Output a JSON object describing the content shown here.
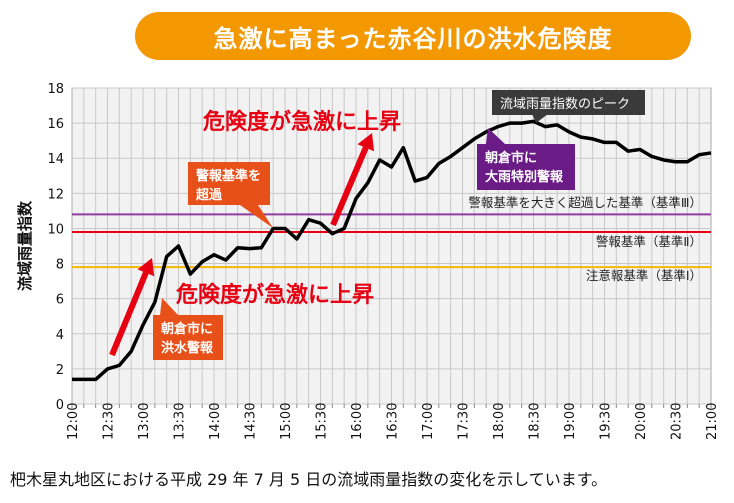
{
  "title": "急激に高まった赤谷川の洪水危険度",
  "caption": "杷木星丸地区における平成 29 年 7 月 5 日の流域雨量指数の変化を示しています。",
  "chart_data": {
    "type": "line",
    "ylabel": "流域雨量指数",
    "ylim": [
      0,
      18
    ],
    "yticks": [
      0,
      2,
      4,
      6,
      8,
      10,
      12,
      14,
      16,
      18
    ],
    "xticks": [
      "12:00",
      "12:30",
      "13:00",
      "13:30",
      "14:00",
      "14:30",
      "15:00",
      "15:30",
      "16:00",
      "16:30",
      "17:00",
      "17:30",
      "18:00",
      "18:30",
      "19:00",
      "19:30",
      "20:00",
      "20:30",
      "21:00"
    ],
    "x_start": "12:00",
    "x_end": "21:00",
    "x_interval_minutes": 10,
    "grid": true,
    "series": [
      {
        "color": "#000000",
        "values": [
          1.4,
          1.4,
          1.4,
          2.0,
          2.2,
          3.0,
          4.5,
          5.8,
          8.4,
          9.0,
          7.4,
          8.1,
          8.5,
          8.2,
          8.9,
          8.85,
          8.9,
          10.0,
          10.0,
          9.4,
          10.5,
          10.3,
          9.7,
          10.0,
          11.7,
          12.6,
          13.9,
          13.5,
          14.6,
          12.7,
          12.9,
          13.7,
          14.1,
          14.6,
          15.1,
          15.5,
          15.8,
          16.0,
          16.0,
          16.1,
          15.8,
          15.9,
          15.5,
          15.2,
          15.1,
          14.9,
          14.9,
          14.4,
          14.5,
          14.1,
          13.9,
          13.8,
          13.8,
          14.2,
          14.3
        ]
      }
    ],
    "thresholds": [
      {
        "label": "警報基準を大きく超過した基準（基準Ⅲ）",
        "value": 10.8,
        "color": "#8e3d9e"
      },
      {
        "label": "警報基準（基準Ⅱ）",
        "value": 9.8,
        "color": "#e60012"
      },
      {
        "label": "注意報基準（基準Ⅰ）",
        "value": 7.8,
        "color": "#f5b800"
      }
    ],
    "annotations": {
      "rise_upper": "危険度が急激に上昇",
      "rise_lower": "危険度が急激に上昇",
      "exceed": [
        "警報基準を",
        "超過"
      ],
      "flood_warning": [
        "朝倉市に",
        "洪水警報"
      ],
      "special_warning": [
        "朝倉市に",
        "大雨特別警報"
      ],
      "peak": "流域雨量指数のピーク"
    },
    "colors": {
      "accent": "#f39800",
      "box_orange": "#e8501a",
      "box_purple": "#6a1b86",
      "box_dark": "#3a3a3a",
      "arrow": "#e60012"
    }
  }
}
